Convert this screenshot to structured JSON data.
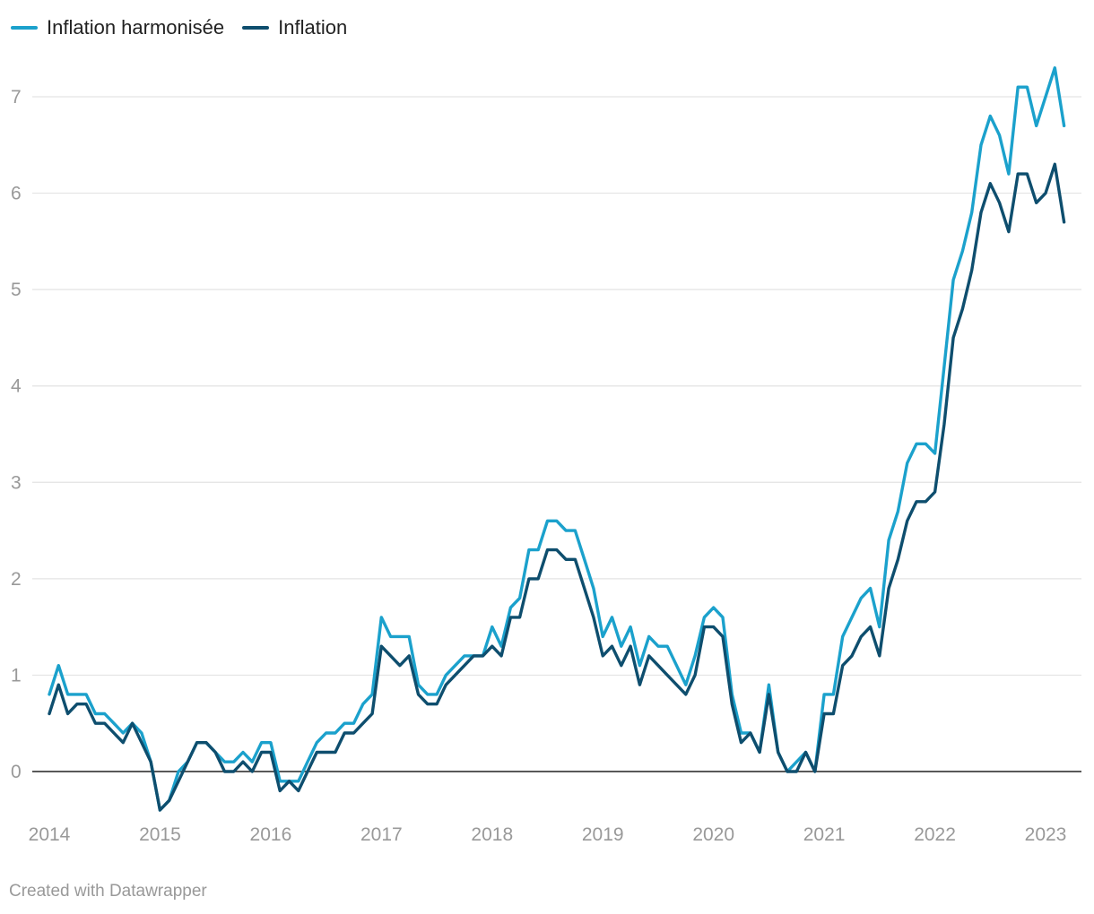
{
  "chart_data": {
    "type": "line",
    "legend_position": "top-left",
    "grid": true,
    "ylim": [
      -0.4,
      7.5
    ],
    "yticks": [
      0,
      1,
      2,
      3,
      4,
      5,
      6,
      7
    ],
    "xlim": [
      2014.0,
      2023.17
    ],
    "xticks": [
      2014,
      2015,
      2016,
      2017,
      2018,
      2019,
      2020,
      2021,
      2022,
      2023
    ],
    "x_start": 2014.0,
    "x_step_months": 1,
    "series": [
      {
        "name": "Inflation harmonisée",
        "color": "#1ba1cc",
        "values": [
          0.8,
          1.1,
          0.8,
          0.8,
          0.8,
          0.6,
          0.6,
          0.5,
          0.4,
          0.5,
          0.4,
          0.1,
          -0.4,
          -0.3,
          0.0,
          0.1,
          0.3,
          0.3,
          0.2,
          0.1,
          0.1,
          0.2,
          0.1,
          0.3,
          0.3,
          -0.1,
          -0.1,
          -0.1,
          0.1,
          0.3,
          0.4,
          0.4,
          0.5,
          0.5,
          0.7,
          0.8,
          1.6,
          1.4,
          1.4,
          1.4,
          0.9,
          0.8,
          0.8,
          1.0,
          1.1,
          1.2,
          1.2,
          1.2,
          1.5,
          1.3,
          1.7,
          1.8,
          2.3,
          2.3,
          2.6,
          2.6,
          2.5,
          2.5,
          2.2,
          1.9,
          1.4,
          1.6,
          1.3,
          1.5,
          1.1,
          1.4,
          1.3,
          1.3,
          1.1,
          0.9,
          1.2,
          1.6,
          1.7,
          1.6,
          0.8,
          0.4,
          0.4,
          0.2,
          0.9,
          0.2,
          0.0,
          0.1,
          0.2,
          0.0,
          0.8,
          0.8,
          1.4,
          1.6,
          1.8,
          1.9,
          1.5,
          2.4,
          2.7,
          3.2,
          3.4,
          3.4,
          3.3,
          4.2,
          5.1,
          5.4,
          5.8,
          6.5,
          6.8,
          6.6,
          6.2,
          7.1,
          7.1,
          6.7,
          7.0,
          7.3,
          6.7
        ]
      },
      {
        "name": "Inflation",
        "color": "#0e4e6e",
        "values": [
          0.6,
          0.9,
          0.6,
          0.7,
          0.7,
          0.5,
          0.5,
          0.4,
          0.3,
          0.5,
          0.3,
          0.1,
          -0.4,
          -0.3,
          -0.1,
          0.1,
          0.3,
          0.3,
          0.2,
          0.0,
          0.0,
          0.1,
          0.0,
          0.2,
          0.2,
          -0.2,
          -0.1,
          -0.2,
          0.0,
          0.2,
          0.2,
          0.2,
          0.4,
          0.4,
          0.5,
          0.6,
          1.3,
          1.2,
          1.1,
          1.2,
          0.8,
          0.7,
          0.7,
          0.9,
          1.0,
          1.1,
          1.2,
          1.2,
          1.3,
          1.2,
          1.6,
          1.6,
          2.0,
          2.0,
          2.3,
          2.3,
          2.2,
          2.2,
          1.9,
          1.6,
          1.2,
          1.3,
          1.1,
          1.3,
          0.9,
          1.2,
          1.1,
          1.0,
          0.9,
          0.8,
          1.0,
          1.5,
          1.5,
          1.4,
          0.7,
          0.3,
          0.4,
          0.2,
          0.8,
          0.2,
          0.0,
          0.0,
          0.2,
          0.0,
          0.6,
          0.6,
          1.1,
          1.2,
          1.4,
          1.5,
          1.2,
          1.9,
          2.2,
          2.6,
          2.8,
          2.8,
          2.9,
          3.6,
          4.5,
          4.8,
          5.2,
          5.8,
          6.1,
          5.9,
          5.6,
          6.2,
          6.2,
          5.9,
          6.0,
          6.3,
          5.7
        ]
      }
    ]
  },
  "footer_text": "Created with Datawrapper"
}
